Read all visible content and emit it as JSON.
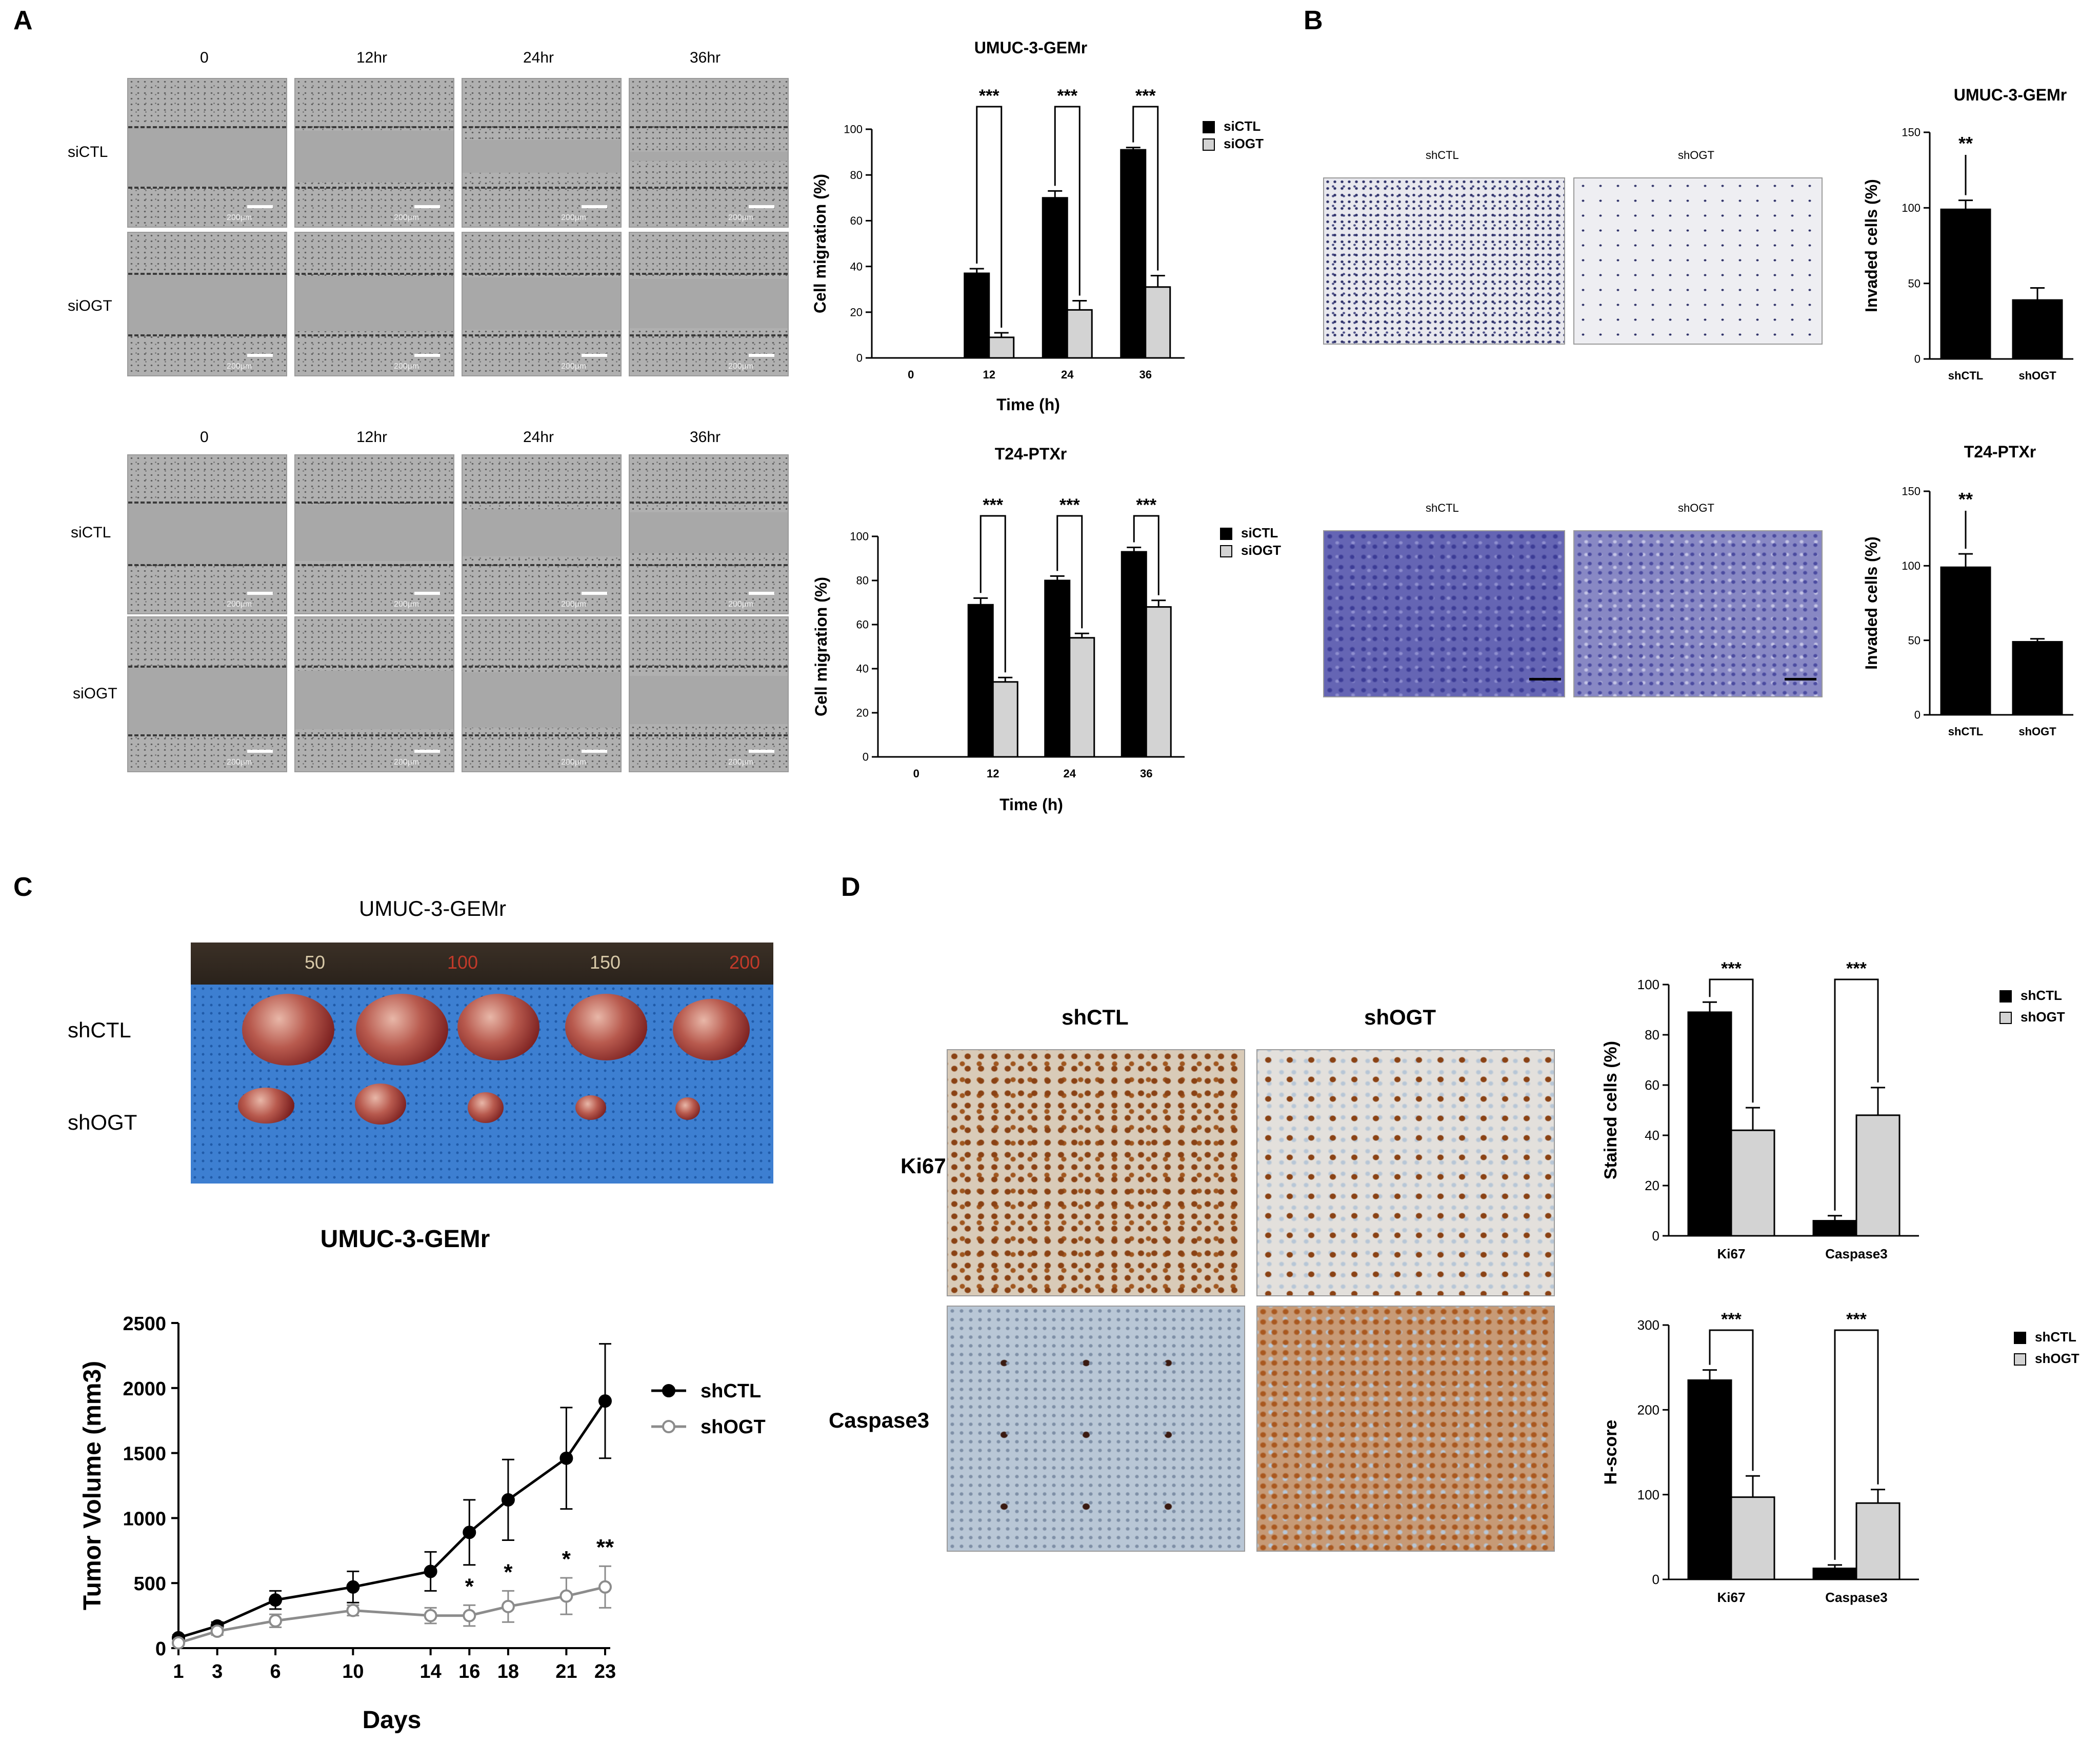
{
  "panels": {
    "a": "A",
    "b": "B",
    "c": "C",
    "d": "D"
  },
  "panel_a": {
    "timepoints": [
      "0",
      "12hr",
      "24hr",
      "36hr"
    ],
    "rows": [
      "siCTL",
      "siOGT"
    ],
    "scale": "200μm"
  },
  "panel_b": {
    "groups": [
      "shCTL",
      "shOGT"
    ]
  },
  "panel_c": {
    "title": "UMUC-3-GEMr",
    "rows": [
      "shCTL",
      "shOGT"
    ],
    "ruler_marks": [
      "50",
      "100",
      "150",
      "200"
    ]
  },
  "panel_d": {
    "columns": [
      "shCTL",
      "shOGT"
    ],
    "rows": [
      "Ki67",
      "Caspase3"
    ]
  },
  "colors": {
    "black": "#000000",
    "grey": "#d3d3d3",
    "open_grey": "#8c8c8c"
  },
  "chart_data": [
    {
      "id": "a_umuc",
      "type": "bar",
      "title": "UMUC-3-GEMr",
      "xlabel": "Time (h)",
      "ylabel": "Cell migration (%)",
      "categories": [
        "0",
        "12",
        "24",
        "36"
      ],
      "ylim": [
        0,
        100
      ],
      "yticks": [
        "0",
        "20",
        "40",
        "60",
        "80",
        "100"
      ],
      "series": [
        {
          "name": "siCTL",
          "values": [
            0,
            37,
            70,
            91
          ],
          "errors": [
            0,
            2,
            3,
            1
          ]
        },
        {
          "name": "siOGT",
          "values": [
            0,
            9,
            21,
            31
          ],
          "errors": [
            0,
            2,
            4,
            5
          ]
        }
      ],
      "annotations": [
        "***",
        "***",
        "***"
      ]
    },
    {
      "id": "a_t24",
      "type": "bar",
      "title": "T24-PTXr",
      "xlabel": "Time (h)",
      "ylabel": "Cell migration (%)",
      "categories": [
        "0",
        "12",
        "24",
        "36"
      ],
      "ylim": [
        0,
        100
      ],
      "yticks": [
        "0",
        "20",
        "40",
        "60",
        "80",
        "100"
      ],
      "series": [
        {
          "name": "siCTL",
          "values": [
            0,
            69,
            80,
            93
          ],
          "errors": [
            0,
            3,
            2,
            2
          ]
        },
        {
          "name": "siOGT",
          "values": [
            0,
            34,
            54,
            68
          ],
          "errors": [
            0,
            2,
            2,
            3
          ]
        }
      ],
      "annotations": [
        "***",
        "***",
        "***"
      ]
    },
    {
      "id": "b_umuc",
      "type": "bar",
      "title": "UMUC-3-GEMr",
      "ylabel": "Invaded cells (%)",
      "categories": [
        "shCTL",
        "shOGT"
      ],
      "ylim": [
        0,
        150
      ],
      "yticks": [
        "0",
        "50",
        "100",
        "150"
      ],
      "values": [
        99,
        39
      ],
      "errors": [
        6,
        8
      ],
      "annotations": [
        "**"
      ]
    },
    {
      "id": "b_t24",
      "type": "bar",
      "title": "T24-PTXr",
      "ylabel": "Invaded cells (%)",
      "categories": [
        "shCTL",
        "shOGT"
      ],
      "ylim": [
        0,
        150
      ],
      "yticks": [
        "0",
        "50",
        "100",
        "150"
      ],
      "values": [
        99,
        49
      ],
      "errors": [
        9,
        2
      ],
      "annotations": [
        "**"
      ]
    },
    {
      "id": "c_volume",
      "type": "line",
      "title": "UMUC-3-GEMr",
      "xlabel": "Days",
      "ylabel": "Tumor Volume (mm3)",
      "x": [
        "1",
        "3",
        "6",
        "10",
        "14",
        "16",
        "18",
        "21",
        "23"
      ],
      "ylim": [
        0,
        2500
      ],
      "yticks": [
        "0",
        "500",
        "1000",
        "1500",
        "2000",
        "2500"
      ],
      "series": [
        {
          "name": "shCTL",
          "values": [
            80,
            170,
            370,
            470,
            590,
            890,
            1140,
            1460,
            1900
          ],
          "errors": [
            20,
            30,
            70,
            120,
            150,
            250,
            310,
            390,
            440
          ]
        },
        {
          "name": "shOGT",
          "values": [
            40,
            130,
            210,
            290,
            250,
            250,
            320,
            400,
            470
          ],
          "errors": [
            15,
            30,
            50,
            40,
            60,
            80,
            120,
            140,
            160
          ]
        }
      ],
      "annotations": [
        {
          "x": "16",
          "text": "*"
        },
        {
          "x": "18",
          "text": "*"
        },
        {
          "x": "21",
          "text": "*"
        },
        {
          "x": "23",
          "text": "**"
        }
      ]
    },
    {
      "id": "d_stained",
      "type": "bar",
      "ylabel": "Stained cells (%)",
      "categories": [
        "Ki67",
        "Caspase3"
      ],
      "ylim": [
        0,
        100
      ],
      "yticks": [
        "0",
        "20",
        "40",
        "60",
        "80",
        "100"
      ],
      "series": [
        {
          "name": "shCTL",
          "values": [
            89,
            6
          ],
          "errors": [
            4,
            2
          ]
        },
        {
          "name": "shOGT",
          "values": [
            42,
            48
          ],
          "errors": [
            9,
            11
          ]
        }
      ],
      "annotations": [
        "***",
        "***"
      ]
    },
    {
      "id": "d_hscore",
      "type": "bar",
      "ylabel": "H-score",
      "categories": [
        "Ki67",
        "Caspase3"
      ],
      "ylim": [
        0,
        300
      ],
      "yticks": [
        "0",
        "100",
        "200",
        "300"
      ],
      "series": [
        {
          "name": "shCTL",
          "values": [
            235,
            13
          ],
          "errors": [
            12,
            4
          ]
        },
        {
          "name": "shOGT",
          "values": [
            97,
            90
          ],
          "errors": [
            25,
            16
          ]
        }
      ],
      "annotations": [
        "***",
        "***"
      ]
    }
  ]
}
